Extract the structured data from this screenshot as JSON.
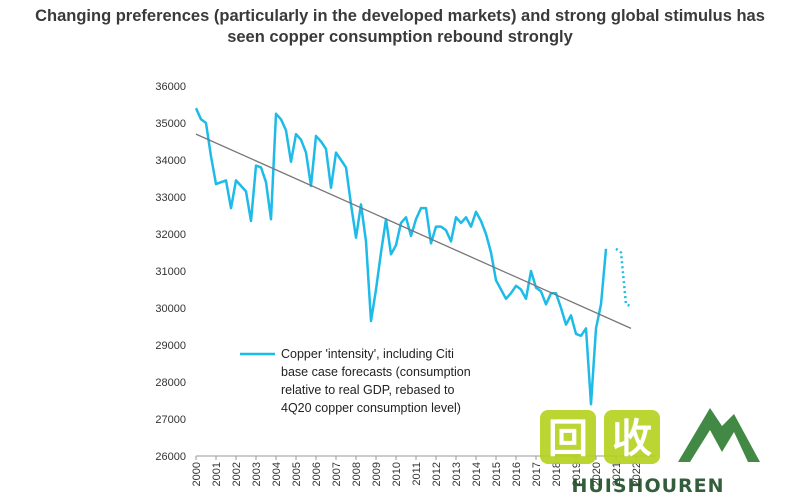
{
  "title": {
    "line1": "Changing preferences (particularly in the developed markets) and strong global stimulus has",
    "line2": "seen copper consumption rebound strongly"
  },
  "chart_data": {
    "type": "line",
    "ylim": [
      26000,
      36000
    ],
    "yticks": [
      26000,
      27000,
      28000,
      29000,
      30000,
      31000,
      32000,
      33000,
      34000,
      35000,
      36000
    ],
    "xlim": [
      2000,
      2023
    ],
    "xticks": [
      "2000",
      "2001",
      "2002",
      "2003",
      "2004",
      "2005",
      "2006",
      "2007",
      "2008",
      "2009",
      "2010",
      "2011",
      "2012",
      "2013",
      "2014",
      "2015",
      "2016",
      "2017",
      "2018",
      "2019",
      "2020",
      "2021",
      "2022"
    ],
    "grid": false,
    "legend_position": "bottom-left",
    "colors": {
      "series": "#1ebbe8",
      "trend": "#777777"
    },
    "series": [
      {
        "name": "Copper 'intensity', including Citi base case forecasts (consumption relative to real GDP, rebased to 4Q20 copper consumption level)",
        "style": "solid",
        "x": [
          2000.0,
          2000.25,
          2000.5,
          2000.75,
          2001.0,
          2001.25,
          2001.5,
          2001.75,
          2002.0,
          2002.25,
          2002.5,
          2002.75,
          2003.0,
          2003.25,
          2003.5,
          2003.75,
          2004.0,
          2004.25,
          2004.5,
          2004.75,
          2005.0,
          2005.25,
          2005.5,
          2005.75,
          2006.0,
          2006.25,
          2006.5,
          2006.75,
          2007.0,
          2007.25,
          2007.5,
          2007.75,
          2008.0,
          2008.25,
          2008.5,
          2008.75,
          2009.0,
          2009.25,
          2009.5,
          2009.75,
          2010.0,
          2010.25,
          2010.5,
          2010.75,
          2011.0,
          2011.25,
          2011.5,
          2011.75,
          2012.0,
          2012.25,
          2012.5,
          2012.75,
          2013.0,
          2013.25,
          2013.5,
          2013.75,
          2014.0,
          2014.25,
          2014.5,
          2014.75,
          2015.0,
          2015.25,
          2015.5,
          2015.75,
          2016.0,
          2016.25,
          2016.5,
          2016.75,
          2017.0,
          2017.25,
          2017.5,
          2017.75,
          2018.0,
          2018.25,
          2018.5,
          2018.75,
          2019.0,
          2019.25,
          2019.5,
          2019.75,
          2020.0,
          2020.25,
          2020.5,
          2020.75,
          2021.0
        ],
        "values": [
          35400,
          35100,
          35000,
          34100,
          33350,
          33400,
          33450,
          32700,
          33450,
          33300,
          33150,
          32350,
          33850,
          33800,
          33400,
          32400,
          35250,
          35100,
          34800,
          33950,
          34700,
          34550,
          34200,
          33300,
          34650,
          34500,
          34300,
          33250,
          34200,
          34000,
          33800,
          32800,
          31900,
          32800,
          31800,
          29650,
          30500,
          31500,
          32400,
          31450,
          31700,
          32300,
          32450,
          31950,
          32400,
          32700,
          32700,
          31750,
          32200,
          32200,
          32100,
          31800,
          32450,
          32300,
          32450,
          32200,
          32600,
          32350,
          32000,
          31500,
          30750,
          30500,
          30250,
          30400,
          30600,
          30500,
          30250,
          31000,
          30550,
          30450,
          30100,
          30400,
          30400,
          30000,
          29550,
          29800,
          29300,
          29250,
          29450,
          27400,
          29450,
          30100,
          31600,
          null,
          null
        ]
      },
      {
        "name": "",
        "style": "dotted",
        "x": [
          2021.0,
          2021.25,
          2021.5,
          2021.75
        ],
        "values": [
          31600,
          31500,
          30100,
          30050
        ]
      },
      {
        "name": "",
        "style": "trend",
        "x": [
          2000.0,
          2021.75
        ],
        "values": [
          34700,
          29450
        ]
      }
    ]
  },
  "legend": {
    "lines": [
      "Copper 'intensity', including Citi",
      "base case forecasts (consumption",
      "relative to real GDP, rebased to",
      "4Q20 copper consumption level)"
    ]
  },
  "watermark": {
    "logo_glyphs": [
      "回",
      "收"
    ],
    "word": "HUISHOUREN",
    "colors": {
      "lime": "#b4d21e",
      "green": "#2e7d32",
      "dark": "#1e4d26"
    }
  }
}
